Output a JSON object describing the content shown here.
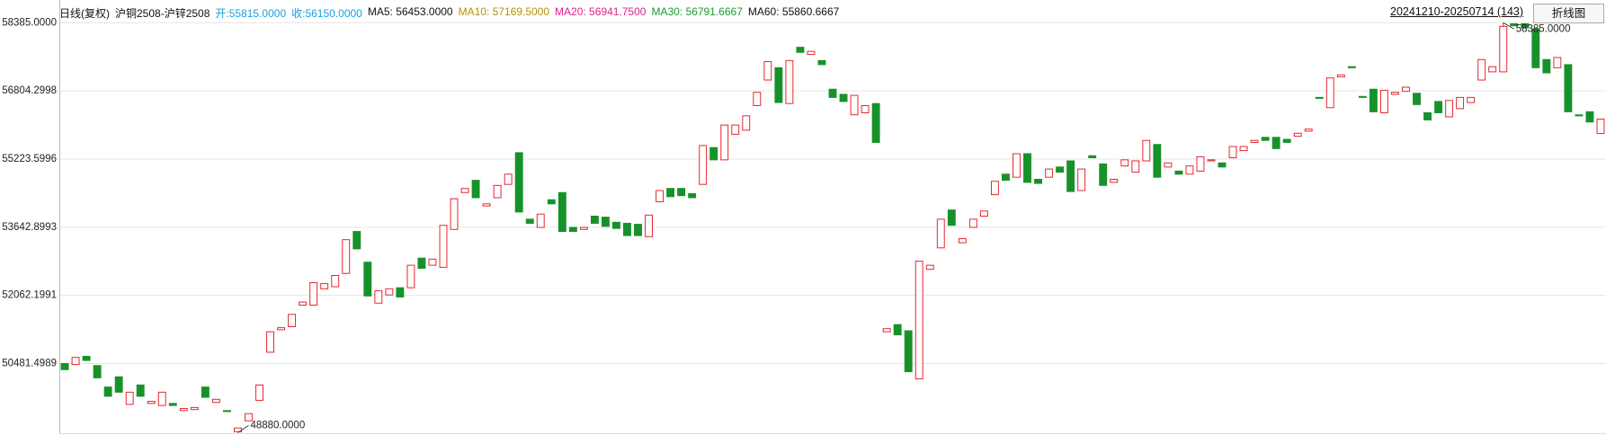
{
  "chart_data": {
    "type": "candlestick",
    "legend": [
      {
        "label": "日线(复权)",
        "color": "#111111"
      },
      {
        "label": "沪铜2508-沪锌2508",
        "color": "#111111"
      },
      {
        "label": "开:55815.0000",
        "color": "#1aa0e0"
      },
      {
        "label": "收:56150.0000",
        "color": "#1aa0e0"
      },
      {
        "label": "MA5: 56453.0000",
        "color": "#111111"
      },
      {
        "label": "MA10: 57169.5000",
        "color": "#b8900a"
      },
      {
        "label": "MA20: 56941.7500",
        "color": "#e0208a"
      },
      {
        "label": "MA30: 56791.6667",
        "color": "#1a9a2a"
      },
      {
        "label": "MA60: 55860.6667",
        "color": "#111111"
      }
    ],
    "date_range": "20241210-20250714 (143)",
    "button": "折线图",
    "up_color": "#e8262e",
    "down_color": "#17922a",
    "grid": true,
    "ylim": [
      48846,
      58432
    ],
    "yticks": [
      {
        "value": 58385,
        "label": "58385.0000"
      },
      56804.2998,
      55223.5996,
      53642.8993,
      52062.1991,
      50481.4989
    ],
    "annotations": [
      {
        "value": 58385,
        "label": "58385.0000"
      },
      {
        "value": 48880,
        "label": "48880.0000"
      }
    ],
    "open": [
      50483,
      50459,
      50649,
      50435,
      49937,
      50174,
      49534,
      49985,
      49557,
      49510,
      49557,
      49391,
      49415,
      49937,
      49581,
      49391,
      48900,
      49154,
      49629,
      50744,
      51266,
      51337,
      51836,
      51836,
      52215,
      52263,
      52571,
      53544,
      52832,
      51883,
      52073,
      52239,
      52239,
      52927,
      52761,
      52714,
      53592,
      54446,
      54731,
      54137,
      54327,
      54636,
      55371,
      53829,
      53639,
      54280,
      54446,
      53639,
      53592,
      53900,
      53876,
      53758,
      53734,
      53710,
      53425,
      54232,
      54541,
      54541,
      54422,
      54636,
      55490,
      55205,
      55798,
      55893,
      56463,
      57056,
      57341,
      56510,
      57815,
      57649,
      57507,
      56843,
      56724,
      56249,
      56297,
      56510,
      51219,
      51385,
      51242,
      50127,
      52666,
      53164,
      54042,
      53283,
      53639,
      53900,
      54398,
      54873,
      54802,
      55348,
      54754,
      54802,
      55039,
      55181,
      54493,
      55300,
      55110,
      54683,
      55063,
      54920,
      55181,
      55561,
      55039,
      54944,
      54873,
      54944,
      55181,
      55134,
      55253,
      55419,
      55609,
      55727,
      55727,
      55680,
      55751,
      55870,
      56653,
      56415,
      57127,
      57365,
      56676,
      56843,
      56297,
      56724,
      56795,
      56748,
      56297,
      56558,
      56202,
      56392,
      56534,
      57056,
      57246,
      57246,
      58360,
      58361,
      58243,
      57531,
      57341,
      57412,
      56249,
      56320,
      55815
    ],
    "close": [
      50341,
      50625,
      50554,
      50151,
      49724,
      49818,
      49818,
      49724,
      49605,
      49818,
      49510,
      49439,
      49463,
      49700,
      49652,
      49368,
      48988,
      49320,
      49985,
      51219,
      51313,
      51622,
      51907,
      52358,
      52334,
      52524,
      53354,
      53141,
      52049,
      52168,
      52215,
      52025,
      52761,
      52690,
      52903,
      53686,
      54303,
      54541,
      54327,
      54185,
      54612,
      54873,
      53995,
      53734,
      53947,
      54185,
      53544,
      53544,
      53639,
      53734,
      53663,
      53615,
      53449,
      53449,
      53924,
      54493,
      54351,
      54375,
      54327,
      55537,
      55205,
      56012,
      56012,
      56226,
      56771,
      57483,
      56534,
      57507,
      57697,
      57721,
      57412,
      56653,
      56558,
      56700,
      56463,
      55609,
      51290,
      51147,
      50293,
      52856,
      52761,
      53829,
      53686,
      53378,
      53829,
      54019,
      54707,
      54731,
      55348,
      54683,
      54659,
      54992,
      54920,
      54470,
      54992,
      55253,
      54612,
      54754,
      55205,
      55181,
      55656,
      54802,
      55134,
      54873,
      55063,
      55276,
      55205,
      55039,
      55514,
      55514,
      55656,
      55656,
      55466,
      55609,
      55822,
      55917,
      56629,
      57104,
      57175,
      57341,
      56653,
      56320,
      56819,
      56771,
      56890,
      56487,
      56131,
      56297,
      56582,
      56653,
      56653,
      57531,
      57365,
      58300,
      58314,
      58266,
      57341,
      57222,
      57578,
      56320,
      56226,
      56083,
      56150
    ],
    "high": [
      50483,
      50625,
      50649,
      50435,
      49937,
      50174,
      49818,
      49985,
      49605,
      49818,
      49557,
      49439,
      49463,
      49937,
      49652,
      49391,
      48988,
      49320,
      49985,
      51219,
      51313,
      51622,
      51907,
      52358,
      52334,
      52524,
      53354,
      53544,
      52832,
      52168,
      52215,
      52239,
      52761,
      52927,
      52903,
      53686,
      54303,
      54541,
      54731,
      54185,
      54612,
      54873,
      55371,
      53829,
      53947,
      54280,
      54446,
      53639,
      53639,
      53900,
      53876,
      53758,
      53734,
      53710,
      53924,
      54493,
      54541,
      54541,
      54422,
      55537,
      55490,
      56012,
      56012,
      56226,
      56771,
      57483,
      57341,
      57507,
      57815,
      57721,
      57507,
      56843,
      56724,
      56700,
      56463,
      56510,
      51290,
      51385,
      51242,
      52856,
      52761,
      53829,
      54042,
      53378,
      53829,
      54019,
      54707,
      54873,
      55348,
      55348,
      54754,
      54992,
      55039,
      55181,
      54992,
      55300,
      55110,
      54754,
      55205,
      55181,
      55656,
      55561,
      55134,
      54944,
      55063,
      55276,
      55205,
      55134,
      55514,
      55514,
      55656,
      55727,
      55727,
      55680,
      55822,
      55917,
      56653,
      57104,
      57175,
      57365,
      56676,
      56843,
      56819,
      56771,
      56890,
      56748,
      56297,
      56558,
      56582,
      56653,
      56653,
      57531,
      57365,
      58385,
      58360,
      58361,
      58243,
      57531,
      57578,
      57412,
      56249,
      56320,
      56150
    ],
    "low": [
      50341,
      50459,
      50554,
      50151,
      49724,
      49818,
      49534,
      49724,
      49557,
      49510,
      49510,
      49391,
      49415,
      49700,
      49581,
      49368,
      48880,
      49154,
      49629,
      50744,
      51266,
      51337,
      51836,
      51836,
      52215,
      52263,
      52571,
      53141,
      52049,
      51883,
      52073,
      52025,
      52239,
      52690,
      52761,
      52714,
      53592,
      54446,
      54327,
      54137,
      54327,
      54636,
      53995,
      53734,
      53639,
      54185,
      53544,
      53544,
      53592,
      53734,
      53663,
      53615,
      53449,
      53449,
      53425,
      54232,
      54351,
      54375,
      54327,
      54636,
      55205,
      55205,
      55798,
      55893,
      56463,
      57056,
      56534,
      56510,
      57697,
      57649,
      57412,
      56653,
      56558,
      56249,
      56297,
      55609,
      51219,
      51147,
      50293,
      50127,
      52666,
      53164,
      53686,
      53283,
      53639,
      53900,
      54398,
      54731,
      54802,
      54683,
      54659,
      54802,
      54920,
      54470,
      54493,
      55253,
      54612,
      54683,
      55063,
      54920,
      55181,
      54802,
      55039,
      54873,
      54873,
      54944,
      55181,
      55039,
      55253,
      55419,
      55609,
      55656,
      55466,
      55609,
      55751,
      55870,
      56629,
      56415,
      57127,
      57341,
      56653,
      56320,
      56297,
      56724,
      56795,
      56487,
      56131,
      56297,
      56202,
      56392,
      56534,
      57056,
      57246,
      57246,
      58314,
      58266,
      57341,
      57222,
      57341,
      56320,
      56226,
      56083,
      55815
    ]
  }
}
